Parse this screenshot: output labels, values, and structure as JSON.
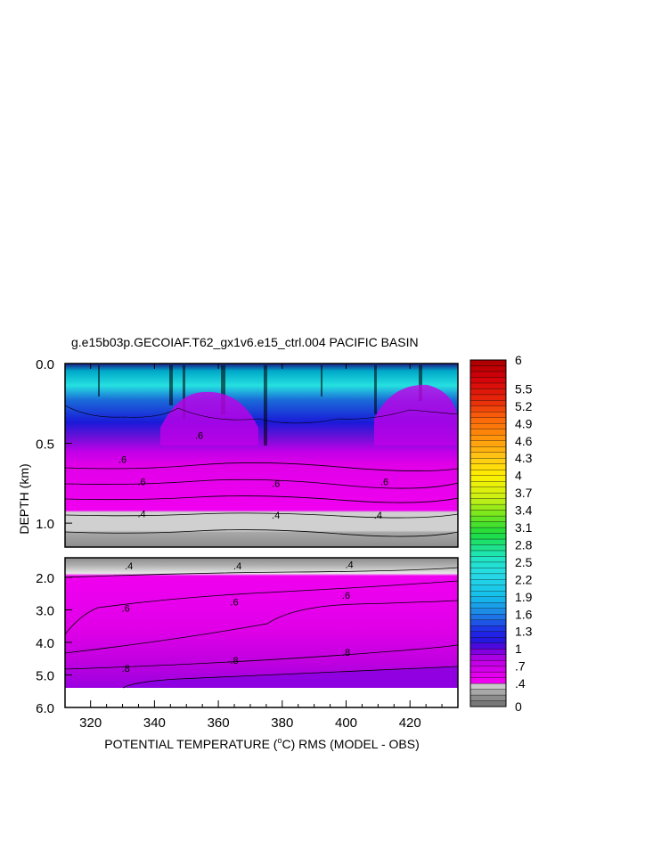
{
  "chart_data": {
    "type": "heatmap",
    "title": "g.e15b03p.GECOIAF.T62_gx1v6.e15_ctrl.004 PACIFIC BASIN",
    "xlabel": "POTENTIAL TEMPERATURE (°C) RMS (MODEL - OBS)",
    "xlabel_parts": {
      "before": "POTENTIAL TEMPERATURE (",
      "sup": "o",
      "after": "C) RMS (MODEL - OBS)"
    },
    "ylabel": "DEPTH (km)",
    "x_ticks": [
      "320",
      "340",
      "360",
      "380",
      "400",
      "420"
    ],
    "x_tick_values": [
      320,
      340,
      360,
      380,
      400,
      420
    ],
    "xlim": [
      312,
      435
    ],
    "upper_panel": {
      "ylim": [
        0.0,
        1.15
      ],
      "y_ticks": [
        "0.0",
        "0.5",
        "1.0"
      ],
      "y_tick_values": [
        0.0,
        0.5,
        1.0
      ]
    },
    "lower_panel": {
      "ylim": [
        1.4,
        6.0
      ],
      "y_ticks": [
        "2.0",
        "3.0",
        "4.0",
        "5.0",
        "6.0"
      ],
      "y_tick_values": [
        2.0,
        3.0,
        4.0,
        5.0,
        6.0
      ]
    },
    "colorbar": {
      "min": 0,
      "max": 6,
      "labels": [
        "6",
        "5.5",
        "5.2",
        "4.9",
        "4.6",
        "4.3",
        "4",
        "3.7",
        "3.4",
        "3.1",
        "2.8",
        "2.5",
        "2.2",
        "1.9",
        "1.6",
        "1.3",
        "1",
        ".7",
        ".4",
        "0"
      ],
      "label_values": [
        6,
        5.5,
        5.2,
        4.9,
        4.6,
        4.3,
        4.0,
        3.7,
        3.4,
        3.1,
        2.8,
        2.5,
        2.2,
        1.9,
        1.6,
        1.3,
        1.0,
        0.7,
        0.4,
        0
      ]
    },
    "contour_labels": {
      "upper": [
        {
          "text": ".6",
          "x": 330,
          "depth": 0.6
        },
        {
          "text": ".6",
          "x": 354,
          "depth": 0.45
        },
        {
          "text": ".6",
          "x": 336,
          "depth": 0.74
        },
        {
          "text": ".6",
          "x": 378,
          "depth": 0.75
        },
        {
          "text": ".6",
          "x": 412,
          "depth": 0.74
        },
        {
          "text": ".4",
          "x": 336,
          "depth": 0.94
        },
        {
          "text": ".4",
          "x": 378,
          "depth": 0.95
        },
        {
          "text": ".4",
          "x": 410,
          "depth": 0.95
        }
      ],
      "lower": [
        {
          "text": ".4",
          "x": 332,
          "depth": 1.65
        },
        {
          "text": ".4",
          "x": 366,
          "depth": 1.65
        },
        {
          "text": ".4",
          "x": 401,
          "depth": 1.6
        },
        {
          "text": ".6",
          "x": 331,
          "depth": 2.95
        },
        {
          "text": ".6",
          "x": 365,
          "depth": 2.75
        },
        {
          "text": ".6",
          "x": 400,
          "depth": 2.55
        },
        {
          "text": ".8",
          "x": 331,
          "depth": 4.8
        },
        {
          "text": ".8",
          "x": 365,
          "depth": 4.55
        },
        {
          "text": ".8",
          "x": 400,
          "depth": 4.3
        }
      ]
    }
  }
}
